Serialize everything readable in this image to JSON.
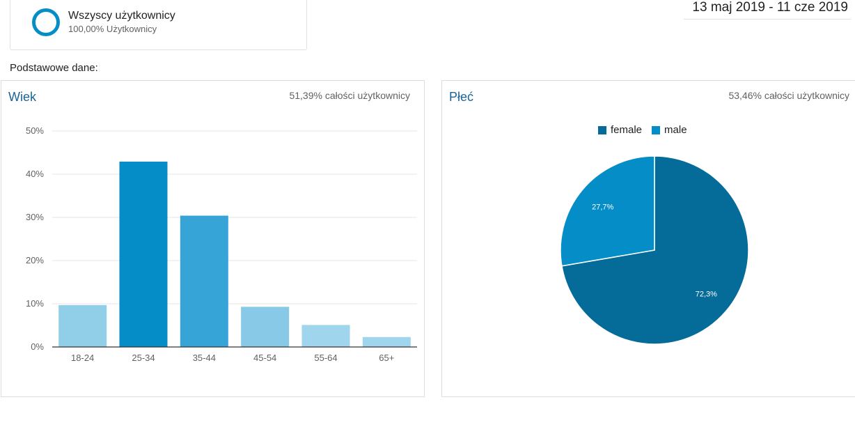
{
  "segment": {
    "title": "Wszyscy użytkownicy",
    "subtitle": "100,00% Użytkownicy",
    "color": "#058dc7"
  },
  "date_range": "13 maj 2019 - 11 cze 2019",
  "section_label": "Podstawowe dane:",
  "age_panel": {
    "title": "Wiek",
    "note": "51,39% całości użytkownicy"
  },
  "gender_panel": {
    "title": "Płeć",
    "note": "53,46% całości użytkownicy"
  },
  "chart_data": [
    {
      "type": "bar",
      "title": "Wiek",
      "categories": [
        "18-24",
        "25-34",
        "35-44",
        "45-54",
        "55-64",
        "65+"
      ],
      "values": [
        9.7,
        42.9,
        30.4,
        9.3,
        5.1,
        2.3
      ],
      "colors": [
        "#91cfe9",
        "#058dc7",
        "#37a4d7",
        "#87c9e7",
        "#9fd6ee",
        "#9fd6ee"
      ],
      "ylim": [
        0,
        50
      ],
      "yticks": [
        0,
        10,
        20,
        30,
        40,
        50
      ],
      "ytick_labels": [
        "0%",
        "10%",
        "20%",
        "30%",
        "40%",
        "50%"
      ],
      "grid": true
    },
    {
      "type": "pie",
      "title": "Płeć",
      "slices": [
        {
          "label": "female",
          "value": 72.3,
          "value_label": "72,3%",
          "color": "#056b99"
        },
        {
          "label": "male",
          "value": 27.7,
          "value_label": "27,7%",
          "color": "#058dc7"
        }
      ],
      "legend_position": "top"
    }
  ]
}
